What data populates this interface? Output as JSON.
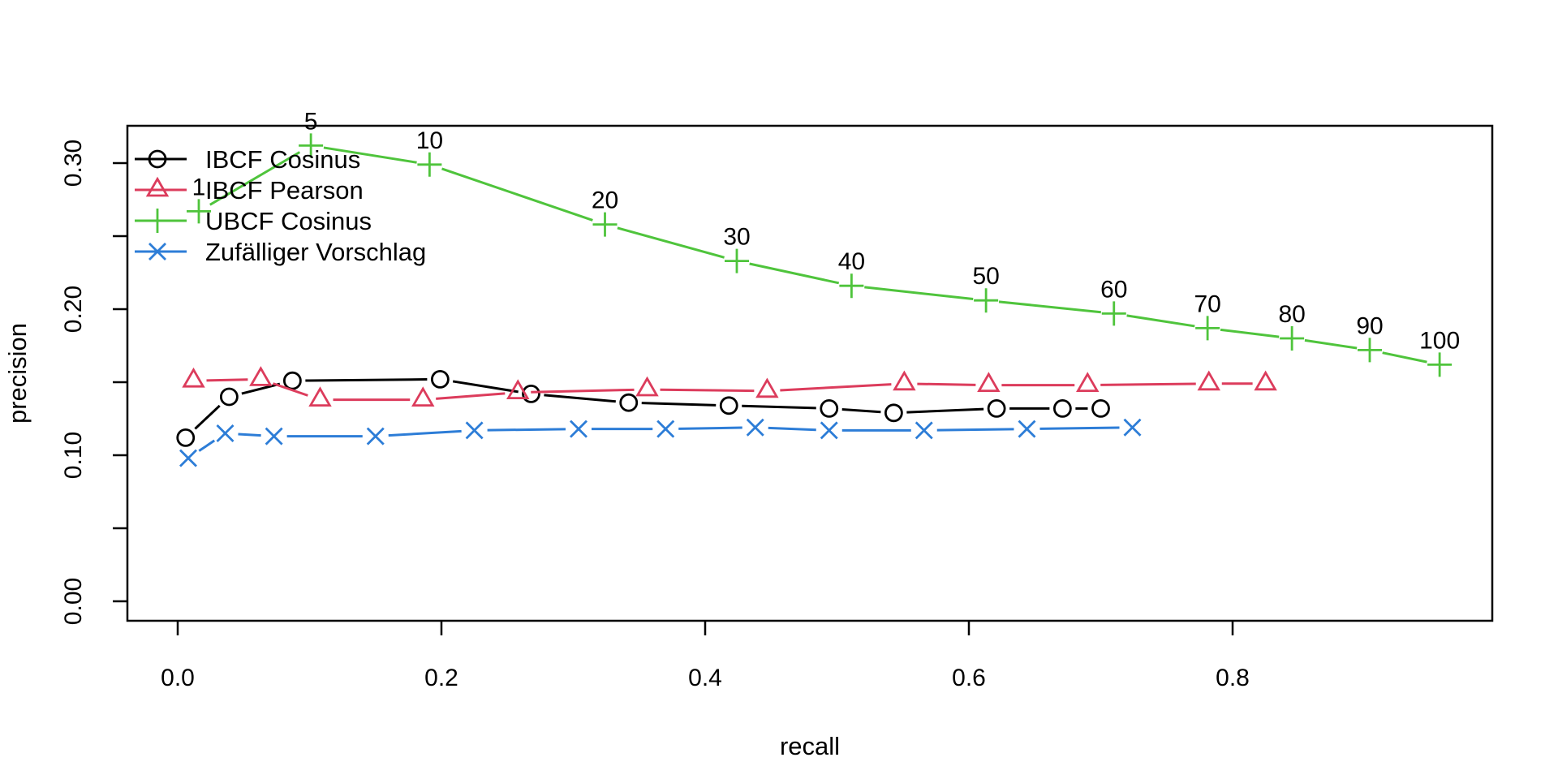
{
  "figure_title": "",
  "chart_data": {
    "type": "line",
    "title": "",
    "xlabel": "recall",
    "ylabel": "precision",
    "xlim": [
      -0.038,
      0.997
    ],
    "ylim": [
      -0.013,
      0.326
    ],
    "grid": false,
    "legend_position": "top-left",
    "x_axis": {
      "label": "recall",
      "tick_values": [
        0.0,
        0.2,
        0.4,
        0.6,
        0.8
      ],
      "tick_labels": [
        "0.0",
        "0.2",
        "0.4",
        "0.6",
        "0.8"
      ]
    },
    "y_axis": {
      "label": "precision",
      "tick_values": [
        0.0,
        0.1,
        0.2,
        0.3
      ],
      "tick_labels": [
        "0.00",
        "0.10",
        "0.20",
        "0.30"
      ],
      "minor_tick_values": [
        0.05,
        0.15,
        0.25
      ]
    },
    "series": [
      {
        "name": "IBCF Cosinus",
        "color": "#000000",
        "marker": "circle",
        "x": [
          0.006,
          0.039,
          0.087,
          0.199,
          0.268,
          0.342,
          0.418,
          0.494,
          0.543,
          0.621,
          0.671,
          0.7
        ],
        "y": [
          0.112,
          0.14,
          0.151,
          0.152,
          0.142,
          0.136,
          0.134,
          0.132,
          0.129,
          0.132,
          0.132,
          0.132
        ],
        "point_labels": null
      },
      {
        "name": "IBCF Pearson",
        "color": "#DC3C5C",
        "marker": "triangle",
        "x": [
          0.012,
          0.063,
          0.108,
          0.186,
          0.258,
          0.356,
          0.447,
          0.551,
          0.615,
          0.69,
          0.782,
          0.825
        ],
        "y": [
          0.151,
          0.152,
          0.138,
          0.138,
          0.143,
          0.145,
          0.144,
          0.149,
          0.148,
          0.148,
          0.149,
          0.149
        ],
        "point_labels": null
      },
      {
        "name": "UBCF Cosinus",
        "color": "#4FC43C",
        "marker": "plus",
        "x": [
          0.016,
          0.101,
          0.191,
          0.324,
          0.424,
          0.511,
          0.613,
          0.71,
          0.781,
          0.845,
          0.904,
          0.957
        ],
        "y": [
          0.267,
          0.312,
          0.299,
          0.258,
          0.233,
          0.216,
          0.206,
          0.197,
          0.187,
          0.18,
          0.172,
          0.162
        ],
        "point_labels": [
          "1",
          "5",
          "10",
          "20",
          "30",
          "40",
          "50",
          "60",
          "70",
          "80",
          "90",
          "100"
        ]
      },
      {
        "name": "Zufälliger Vorschlag",
        "color": "#2D7DD7",
        "marker": "x",
        "x": [
          0.008,
          0.036,
          0.073,
          0.15,
          0.225,
          0.304,
          0.37,
          0.438,
          0.494,
          0.566,
          0.644,
          0.724
        ],
        "y": [
          0.098,
          0.115,
          0.113,
          0.113,
          0.117,
          0.118,
          0.118,
          0.119,
          0.117,
          0.117,
          0.118,
          0.119
        ],
        "point_labels": null
      }
    ]
  }
}
